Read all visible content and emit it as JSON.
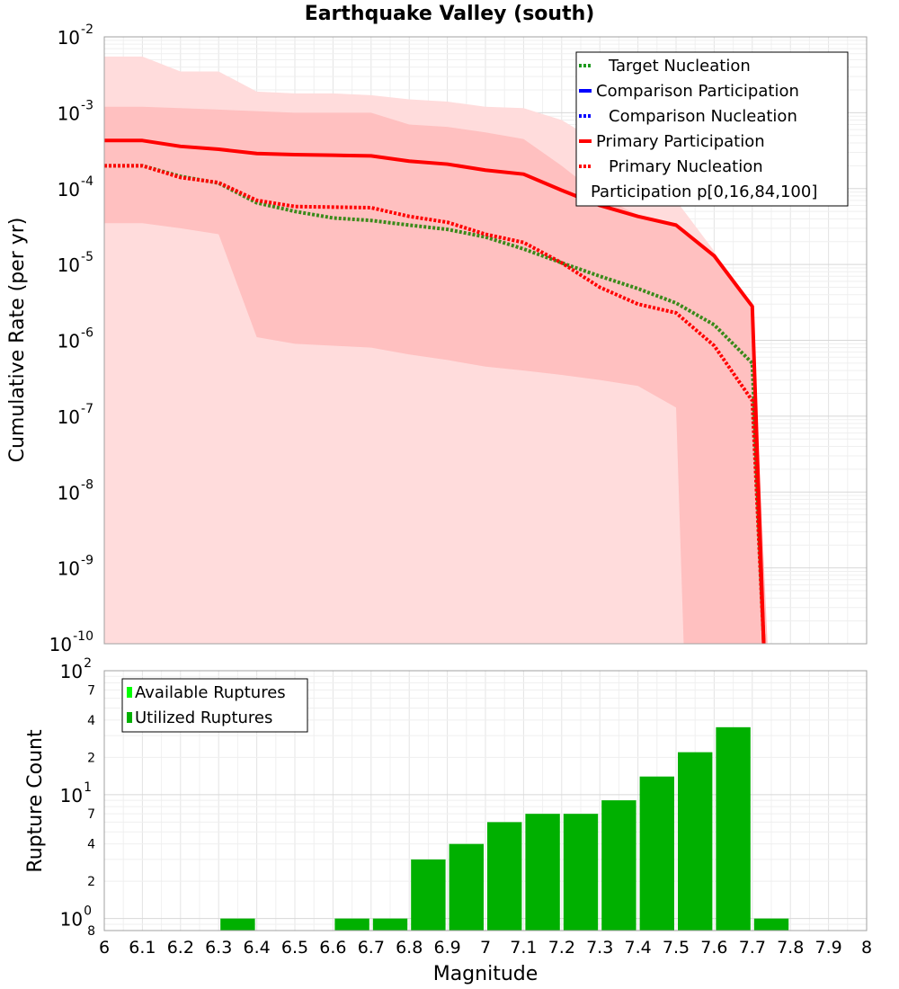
{
  "chart_data": [
    {
      "type": "line",
      "title": "Earthquake Valley (south)",
      "ylabel": "Cumulative Rate (per yr)",
      "yscale": "log",
      "xlim": [
        6,
        8
      ],
      "ylim": [
        1e-10,
        0.01
      ],
      "y_tick_labels": [
        {
          "base": "10",
          "exp": "-2"
        },
        {
          "base": "10",
          "exp": "-3"
        },
        {
          "base": "10",
          "exp": "-4"
        },
        {
          "base": "10",
          "exp": "-5"
        },
        {
          "base": "10",
          "exp": "-6"
        },
        {
          "base": "10",
          "exp": "-7"
        },
        {
          "base": "10",
          "exp": "-8"
        },
        {
          "base": "10",
          "exp": "-9"
        },
        {
          "base": "10",
          "exp": "-10"
        }
      ],
      "grid": true,
      "legend_position": "top-right",
      "legend": [
        {
          "label": "Target Nucleation",
          "color": "#1f9a1f",
          "style": "dotted"
        },
        {
          "label": "Comparison Participation",
          "color": "#0000ff",
          "style": "solid"
        },
        {
          "label": "Comparison Nucleation",
          "color": "#0000ff",
          "style": "dotted"
        },
        {
          "label": "Primary Participation",
          "color": "#ff0000",
          "style": "solid"
        },
        {
          "label": "Primary Nucleation",
          "color": "#ff0000",
          "style": "dotted"
        },
        {
          "label": "Participation p[0,16,84,100]",
          "color": "",
          "style": "none"
        }
      ],
      "series": [
        {
          "name": "Target Nucleation",
          "color": "#3a8a1a",
          "style": "dotted",
          "x": [
            6.0,
            6.1,
            6.2,
            6.3,
            6.4,
            6.5,
            6.6,
            6.7,
            6.8,
            6.9,
            7.0,
            7.1,
            7.2,
            7.3,
            7.4,
            7.5,
            7.6,
            7.7,
            7.73
          ],
          "y": [
            0.0002,
            0.0002,
            0.000145,
            0.000118,
            6.5e-05,
            5e-05,
            4.1e-05,
            3.8e-05,
            3.3e-05,
            2.9e-05,
            2.3e-05,
            1.6e-05,
            1.05e-05,
            7e-06,
            4.8e-06,
            3.1e-06,
            1.6e-06,
            5e-07,
            1e-10
          ]
        },
        {
          "name": "Primary Participation",
          "color": "#ff0000",
          "style": "solid",
          "x": [
            6.0,
            6.1,
            6.2,
            6.3,
            6.4,
            6.5,
            6.6,
            6.7,
            6.8,
            6.9,
            7.0,
            7.1,
            7.2,
            7.3,
            7.4,
            7.5,
            7.6,
            7.7,
            7.73
          ],
          "y": [
            0.00043,
            0.00043,
            0.00036,
            0.00033,
            0.00029,
            0.00028,
            0.000275,
            0.00027,
            0.00023,
            0.00021,
            0.000175,
            0.000155,
            9.5e-05,
            6e-05,
            4.3e-05,
            3.3e-05,
            1.3e-05,
            2.8e-06,
            1e-10
          ]
        },
        {
          "name": "Primary Nucleation",
          "color": "#ff0000",
          "style": "dotted",
          "x": [
            6.0,
            6.1,
            6.2,
            6.3,
            6.4,
            6.5,
            6.6,
            6.7,
            6.8,
            6.9,
            7.0,
            7.1,
            7.2,
            7.3,
            7.4,
            7.5,
            7.6,
            7.7,
            7.73
          ],
          "y": [
            0.0002,
            0.0002,
            0.00014,
            0.00012,
            7e-05,
            5.8e-05,
            5.7e-05,
            5.6e-05,
            4.3e-05,
            3.6e-05,
            2.5e-05,
            1.95e-05,
            1.05e-05,
            5e-06,
            3e-06,
            2.3e-06,
            8.5e-07,
            1.6e-07,
            1e-10
          ]
        }
      ],
      "bands": [
        {
          "name": "p0-p100",
          "color": "#ffdcdc",
          "x": [
            6.0,
            6.1,
            6.2,
            6.3,
            6.4,
            6.5,
            6.6,
            6.7,
            6.8,
            6.9,
            7.0,
            7.1,
            7.2,
            7.3,
            7.4,
            7.5,
            7.6,
            7.69,
            7.7
          ],
          "upper": [
            0.0055,
            0.0055,
            0.0035,
            0.0035,
            0.0019,
            0.0018,
            0.0018,
            0.0017,
            0.0015,
            0.0014,
            0.0012,
            0.00115,
            0.0008,
            0.0004,
            0.00013,
            7e-05,
            1.5e-05,
            2e-06,
            1e-10
          ],
          "lower": [
            1e-10,
            1e-10,
            1e-10,
            1e-10,
            1e-10,
            1e-10,
            1e-10,
            1e-10,
            1e-10,
            1e-10,
            1e-10,
            1e-10,
            1e-10,
            1e-10,
            1e-10,
            1e-10,
            1e-10,
            1e-10,
            1e-10
          ]
        },
        {
          "name": "p16-p84",
          "color": "#ffc0c0",
          "x": [
            6.0,
            6.1,
            6.2,
            6.3,
            6.4,
            6.5,
            6.6,
            6.7,
            6.8,
            6.9,
            7.0,
            7.1,
            7.2,
            7.3,
            7.4,
            7.5,
            7.52,
            7.6,
            7.7,
            7.74
          ],
          "upper": [
            0.0012,
            0.0012,
            0.00115,
            0.0011,
            0.00105,
            0.001,
            0.001,
            0.001,
            0.0007,
            0.00065,
            0.00055,
            0.00045,
            0.0002,
            8e-05,
            4.5e-05,
            3.3e-05,
            2.8e-05,
            1.3e-05,
            2.5e-06,
            1e-10
          ],
          "lower": [
            3.5e-05,
            3.5e-05,
            3e-05,
            2.5e-05,
            1.1e-06,
            9e-07,
            8.5e-07,
            8e-07,
            6.5e-07,
            5.5e-07,
            4.5e-07,
            4e-07,
            3.5e-07,
            3e-07,
            2.5e-07,
            1.3e-07,
            1e-10,
            1e-10,
            1e-10,
            1e-10
          ]
        }
      ]
    },
    {
      "type": "bar",
      "ylabel": "Rupture Count",
      "xlabel": "Magnitude",
      "yscale": "log",
      "xlim": [
        6,
        8
      ],
      "ylim": [
        0.8,
        100
      ],
      "x_tick_labels": [
        "6",
        "6.1",
        "6.2",
        "6.3",
        "6.4",
        "6.5",
        "6.6",
        "6.7",
        "6.8",
        "6.9",
        "7",
        "7.1",
        "7.2",
        "7.3",
        "7.4",
        "7.5",
        "7.6",
        "7.7",
        "7.8",
        "7.9",
        "8"
      ],
      "y_major_ticks": [
        {
          "base": "10",
          "exp": "0"
        },
        {
          "base": "10",
          "exp": "1"
        },
        {
          "base": "10",
          "exp": "2"
        }
      ],
      "y_minor_ticks": [
        {
          "label": "8",
          "value": 0.8
        },
        {
          "label": "2",
          "value": 2
        },
        {
          "label": "4",
          "value": 4
        },
        {
          "label": "7",
          "value": 7
        },
        {
          "label": "2",
          "value": 20
        },
        {
          "label": "4",
          "value": 40
        },
        {
          "label": "7",
          "value": 70
        }
      ],
      "grid": true,
      "legend_position": "top-left",
      "legend": [
        {
          "label": "Available Ruptures",
          "color": "#00ff00"
        },
        {
          "label": "Utilized Ruptures",
          "color": "#00b000"
        }
      ],
      "series": [
        {
          "name": "Utilized Ruptures",
          "color": "#00b000",
          "x": [
            6.35,
            6.65,
            6.75,
            6.85,
            6.95,
            7.05,
            7.15,
            7.25,
            7.35,
            7.45,
            7.55,
            7.65,
            7.75
          ],
          "values": [
            1,
            1,
            1,
            3,
            4,
            6,
            7,
            7,
            9,
            14,
            22,
            35,
            1
          ]
        }
      ]
    }
  ]
}
